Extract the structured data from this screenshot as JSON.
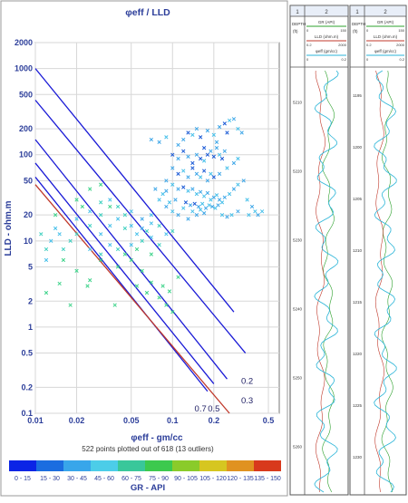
{
  "chart_data": [
    {
      "type": "scatter",
      "title": "φeff / LLD",
      "xlabel": "φeff - gm/cc",
      "ylabel": "LLD - ohm.m",
      "x_scale": "log",
      "y_scale": "log",
      "xlim": [
        0.01,
        0.6
      ],
      "ylim": [
        0.1,
        2000
      ],
      "grid": true,
      "x_ticks": [
        {
          "v": 0.01,
          "label": "0.01"
        },
        {
          "v": 0.02,
          "label": "0.02"
        },
        {
          "v": 0.05,
          "label": "0.05"
        },
        {
          "v": 0.1,
          "label": "0.1"
        },
        {
          "v": 0.2,
          "label": "0.2"
        },
        {
          "v": 0.5,
          "label": "0.5"
        }
      ],
      "y_ticks": [
        {
          "v": 0.1,
          "label": "0.1"
        },
        {
          "v": 0.2,
          "label": "0.2"
        },
        {
          "v": 0.5,
          "label": "0.5"
        },
        {
          "v": 1,
          "label": "1"
        },
        {
          "v": 2,
          "label": "2"
        },
        {
          "v": 5,
          "label": "5"
        },
        {
          "v": 10,
          "label": "10"
        },
        {
          "v": 20,
          "label": "20"
        },
        {
          "v": 50,
          "label": "50"
        },
        {
          "v": 100,
          "label": "100"
        },
        {
          "v": 200,
          "label": "200"
        },
        {
          "v": 500,
          "label": "500"
        },
        {
          "v": 1000,
          "label": "1000"
        },
        {
          "v": 2000,
          "label": "2000"
        }
      ],
      "iso_lines": [
        {
          "label": "0.2",
          "color": "#1a1ad6",
          "points": [
            [
              0.01,
              1000
            ],
            [
              0.28,
              1.5
            ]
          ]
        },
        {
          "label": "0.3",
          "color": "#1a1ad6",
          "points": [
            [
              0.01,
              430
            ],
            [
              0.34,
              0.5
            ]
          ]
        },
        {
          "label": "0.5",
          "color": "#1a1ad6",
          "points": [
            [
              0.01,
              150
            ],
            [
              0.25,
              0.25
            ]
          ]
        },
        {
          "label": "0.7",
          "color": "#1a1ad6",
          "points": [
            [
              0.01,
              80
            ],
            [
              0.2,
              0.22
            ]
          ]
        },
        {
          "label": "",
          "color": "#1a1ad6",
          "points": [
            [
              0.01,
              55
            ],
            [
              0.18,
              0.18
            ]
          ]
        },
        {
          "label": "",
          "color": "#c0392b",
          "points": [
            [
              0.01,
              45
            ],
            [
              0.26,
              0.1
            ]
          ]
        }
      ],
      "iso_label_positions": [
        [
          0.35,
          0.22
        ],
        [
          0.35,
          0.13
        ],
        [
          0.2,
          0.105
        ],
        [
          0.16,
          0.105
        ]
      ],
      "points": [
        [
          0.07,
          150,
          "#3fa7e8"
        ],
        [
          0.08,
          140,
          "#3fa7e8"
        ],
        [
          0.09,
          160,
          "#47c0ea"
        ],
        [
          0.11,
          130,
          "#3fa7e8"
        ],
        [
          0.12,
          150,
          "#3fa7e8"
        ],
        [
          0.13,
          180,
          "#1c5bd6"
        ],
        [
          0.14,
          170,
          "#47c0ea"
        ],
        [
          0.15,
          200,
          "#3fa7e8"
        ],
        [
          0.16,
          160,
          "#1c5bd6"
        ],
        [
          0.18,
          190,
          "#3fa7e8"
        ],
        [
          0.2,
          170,
          "#47c0ea"
        ],
        [
          0.22,
          210,
          "#3fa7e8"
        ],
        [
          0.24,
          230,
          "#1c5bd6"
        ],
        [
          0.26,
          250,
          "#47c0ea"
        ],
        [
          0.28,
          260,
          "#3fa7e8"
        ],
        [
          0.3,
          200,
          "#47c0ea"
        ],
        [
          0.32,
          180,
          "#3fa7e8"
        ],
        [
          0.25,
          180,
          "#1c5bd6"
        ],
        [
          0.21,
          140,
          "#3fa7e8"
        ],
        [
          0.17,
          120,
          "#1c5bd6"
        ],
        [
          0.1,
          100,
          "#1c5bd6"
        ],
        [
          0.11,
          90,
          "#3fa7e8"
        ],
        [
          0.12,
          110,
          "#1c5bd6"
        ],
        [
          0.13,
          95,
          "#3fa7e8"
        ],
        [
          0.14,
          80,
          "#1c5bd6"
        ],
        [
          0.15,
          100,
          "#3fa7e8"
        ],
        [
          0.16,
          90,
          "#1c5bd6"
        ],
        [
          0.17,
          85,
          "#47c0ea"
        ],
        [
          0.18,
          100,
          "#1c5bd6"
        ],
        [
          0.19,
          110,
          "#3fa7e8"
        ],
        [
          0.2,
          95,
          "#1c5bd6"
        ],
        [
          0.21,
          120,
          "#3fa7e8"
        ],
        [
          0.22,
          100,
          "#47c0ea"
        ],
        [
          0.23,
          90,
          "#1c5bd6"
        ],
        [
          0.24,
          110,
          "#3fa7e8"
        ],
        [
          0.1,
          70,
          "#3fa7e8"
        ],
        [
          0.11,
          60,
          "#1c5bd6"
        ],
        [
          0.12,
          65,
          "#47c0ea"
        ],
        [
          0.13,
          55,
          "#3fa7e8"
        ],
        [
          0.14,
          70,
          "#1c5bd6"
        ],
        [
          0.15,
          60,
          "#3fa7e8"
        ],
        [
          0.16,
          55,
          "#47c0ea"
        ],
        [
          0.17,
          65,
          "#1c5bd6"
        ],
        [
          0.18,
          50,
          "#3fa7e8"
        ],
        [
          0.19,
          60,
          "#47c0ea"
        ],
        [
          0.2,
          55,
          "#1c5bd6"
        ],
        [
          0.22,
          60,
          "#3fa7e8"
        ],
        [
          0.25,
          70,
          "#47c0ea"
        ],
        [
          0.28,
          80,
          "#3fa7e8"
        ],
        [
          0.3,
          90,
          "#47c0ea"
        ],
        [
          0.09,
          50,
          "#3fa7e8"
        ],
        [
          0.1,
          45,
          "#47c0ea"
        ],
        [
          0.11,
          40,
          "#3fa7e8"
        ],
        [
          0.12,
          42,
          "#1c5bd6"
        ],
        [
          0.13,
          38,
          "#47c0ea"
        ],
        [
          0.14,
          40,
          "#3fa7e8"
        ],
        [
          0.15,
          35,
          "#47c0ea"
        ],
        [
          0.16,
          37,
          "#3fa7e8"
        ],
        [
          0.17,
          33,
          "#47c0ea"
        ],
        [
          0.18,
          36,
          "#3fa7e8"
        ],
        [
          0.19,
          30,
          "#47c0ea"
        ],
        [
          0.2,
          32,
          "#3fa7e8"
        ],
        [
          0.21,
          34,
          "#47c0ea"
        ],
        [
          0.22,
          30,
          "#3fa7e8"
        ],
        [
          0.23,
          28,
          "#47c0ea"
        ],
        [
          0.24,
          32,
          "#3fa7e8"
        ],
        [
          0.26,
          35,
          "#47c0ea"
        ],
        [
          0.28,
          40,
          "#3fa7e8"
        ],
        [
          0.3,
          45,
          "#47c0ea"
        ],
        [
          0.33,
          50,
          "#3fa7e8"
        ],
        [
          0.35,
          30,
          "#47c0ea"
        ],
        [
          0.38,
          25,
          "#3fa7e8"
        ],
        [
          0.4,
          22,
          "#47c0ea"
        ],
        [
          0.42,
          20,
          "#3fa7e8"
        ],
        [
          0.45,
          22,
          "#47c0ea"
        ],
        [
          0.08,
          30,
          "#47c0ea"
        ],
        [
          0.09,
          25,
          "#3fa7e8"
        ],
        [
          0.1,
          22,
          "#47c0ea"
        ],
        [
          0.11,
          20,
          "#3fa7e8"
        ],
        [
          0.12,
          24,
          "#47c0ea"
        ],
        [
          0.13,
          18,
          "#3fa7e8"
        ],
        [
          0.14,
          22,
          "#47c0ea"
        ],
        [
          0.15,
          20,
          "#3fa7e8"
        ],
        [
          0.16,
          23,
          "#47c0ea"
        ],
        [
          0.17,
          21,
          "#3fa7e8"
        ],
        [
          0.07,
          20,
          "#47c0ea"
        ],
        [
          0.06,
          18,
          "#3fa7e8"
        ],
        [
          0.05,
          22,
          "#47c0ea"
        ],
        [
          0.045,
          20,
          "#40d0c0"
        ],
        [
          0.05,
          15,
          "#47c0ea"
        ],
        [
          0.06,
          14,
          "#3fa7e8"
        ],
        [
          0.07,
          16,
          "#47c0ea"
        ],
        [
          0.08,
          15,
          "#40d0c0"
        ],
        [
          0.09,
          12,
          "#47c0ea"
        ],
        [
          0.1,
          13,
          "#40d0c0"
        ],
        [
          0.04,
          25,
          "#40d0c0"
        ],
        [
          0.035,
          30,
          "#47c0ea"
        ],
        [
          0.03,
          28,
          "#40d0c0"
        ],
        [
          0.04,
          18,
          "#47c0ea"
        ],
        [
          0.045,
          14,
          "#40d0c0"
        ],
        [
          0.035,
          15,
          "#47c0ea"
        ],
        [
          0.03,
          20,
          "#40d0c0"
        ],
        [
          0.025,
          22,
          "#47c0ea"
        ],
        [
          0.025,
          15,
          "#40d0c0"
        ],
        [
          0.03,
          12,
          "#47c0ea"
        ],
        [
          0.02,
          12,
          "#40d0c0"
        ],
        [
          0.02,
          18,
          "#47c0ea"
        ],
        [
          0.018,
          10,
          "#40d0c0"
        ],
        [
          0.015,
          12,
          "#47c0ea"
        ],
        [
          0.016,
          8,
          "#40d0c0"
        ],
        [
          0.013,
          10,
          "#47c0ea"
        ],
        [
          0.012,
          8,
          "#40d0c0"
        ],
        [
          0.014,
          14,
          "#47c0ea"
        ],
        [
          0.011,
          12,
          "#40d0c0"
        ],
        [
          0.012,
          6,
          "#47c0ea"
        ],
        [
          0.025,
          8,
          "#47c0ea"
        ],
        [
          0.03,
          7,
          "#40d0c0"
        ],
        [
          0.035,
          9,
          "#47c0ea"
        ],
        [
          0.04,
          8,
          "#40d0c0"
        ],
        [
          0.05,
          9,
          "#47c0ea"
        ],
        [
          0.06,
          10,
          "#40d0c0"
        ],
        [
          0.07,
          11,
          "#47c0ea"
        ],
        [
          0.08,
          9,
          "#40d0c0"
        ],
        [
          0.055,
          12,
          "#47c0ea"
        ],
        [
          0.065,
          13,
          "#40d0c0"
        ],
        [
          0.075,
          40,
          "#3fa7e8"
        ],
        [
          0.085,
          35,
          "#47c0ea"
        ],
        [
          0.09,
          38,
          "#3fa7e8"
        ],
        [
          0.095,
          28,
          "#47c0ea"
        ],
        [
          0.105,
          30,
          "#3fa7e8"
        ],
        [
          0.125,
          28,
          "#1c5bd6"
        ],
        [
          0.135,
          26,
          "#3fa7e8"
        ],
        [
          0.145,
          27,
          "#1c5bd6"
        ],
        [
          0.155,
          25,
          "#3fa7e8"
        ],
        [
          0.165,
          27,
          "#47c0ea"
        ],
        [
          0.175,
          24,
          "#3fa7e8"
        ],
        [
          0.185,
          26,
          "#47c0ea"
        ],
        [
          0.195,
          25,
          "#3fa7e8"
        ],
        [
          0.205,
          24,
          "#47c0ea"
        ],
        [
          0.215,
          26,
          "#3fa7e8"
        ],
        [
          0.23,
          20,
          "#47c0ea"
        ],
        [
          0.25,
          19,
          "#3fa7e8"
        ],
        [
          0.27,
          20,
          "#47c0ea"
        ],
        [
          0.3,
          22,
          "#3fa7e8"
        ],
        [
          0.36,
          20,
          "#47c0ea"
        ],
        [
          0.025,
          40,
          "#3ed38a"
        ],
        [
          0.03,
          45,
          "#3ed38a"
        ],
        [
          0.035,
          25,
          "#3ed38a"
        ],
        [
          0.02,
          30,
          "#3ed38a"
        ],
        [
          0.022,
          25,
          "#3ed38a"
        ],
        [
          0.014,
          20,
          "#3ed38a"
        ],
        [
          0.016,
          6,
          "#3ed38a"
        ],
        [
          0.02,
          4.5,
          "#3ed38a"
        ],
        [
          0.025,
          3.5,
          "#3ed38a"
        ],
        [
          0.015,
          3.2,
          "#3ed38a"
        ],
        [
          0.012,
          2.5,
          "#3ed38a"
        ],
        [
          0.018,
          1.8,
          "#3ed38a"
        ],
        [
          0.024,
          3,
          "#3ed38a"
        ],
        [
          0.038,
          1.8,
          "#3ed38a"
        ],
        [
          0.055,
          3,
          "#3ed38a"
        ],
        [
          0.065,
          2.5,
          "#3ed38a"
        ],
        [
          0.07,
          3.3,
          "#3ed38a"
        ],
        [
          0.08,
          2.2,
          "#3ed38a"
        ],
        [
          0.085,
          3,
          "#3ed38a"
        ],
        [
          0.09,
          1.8,
          "#3ed38a"
        ],
        [
          0.095,
          2.6,
          "#3ed38a"
        ],
        [
          0.1,
          1.5,
          "#3ed38a"
        ],
        [
          0.11,
          3.8,
          "#3ed38a"
        ],
        [
          0.06,
          4.5,
          "#3ed38a"
        ],
        [
          0.04,
          5,
          "#3ed38a"
        ],
        [
          0.03,
          6,
          "#3ed38a"
        ],
        [
          0.045,
          7,
          "#3ed38a"
        ],
        [
          0.05,
          6,
          "#3ed38a"
        ],
        [
          0.055,
          8,
          "#3ed38a"
        ],
        [
          0.07,
          7,
          "#3ed38a"
        ]
      ],
      "points_label": "522 points plotted out of 618 (13 outliers)",
      "colorbar": {
        "label": "GR - API",
        "bins": [
          {
            "range": "0 - 15",
            "color": "#0b24e6"
          },
          {
            "range": "15 - 30",
            "color": "#1b6de0"
          },
          {
            "range": "30 - 45",
            "color": "#38a6ea"
          },
          {
            "range": "45 - 60",
            "color": "#4ccde8"
          },
          {
            "range": "60 - 75",
            "color": "#39c79a"
          },
          {
            "range": "75 - 90",
            "color": "#3cc94e"
          },
          {
            "range": "90 - 105",
            "color": "#8acb2a"
          },
          {
            "range": "105 - 120",
            "color": "#d6c620"
          },
          {
            "range": "120 - 135",
            "color": "#e09220"
          },
          {
            "range": "135 - 150",
            "color": "#d8391c"
          }
        ]
      }
    }
  ],
  "log_panels": [
    {
      "track1_header": "1",
      "track2_header": "2",
      "depth_label": "DEPTH",
      "depth_unit": "(ft)",
      "curves": [
        {
          "name": "GR (API)",
          "min": "0",
          "max": "150",
          "color": "#2ca02c"
        },
        {
          "name": "LLD (ohm.m)",
          "min": "0.2",
          "max": "2000",
          "color": "#c0392b"
        },
        {
          "name": "φeff (gm/cc)",
          "min": "0",
          "max": "0.2",
          "color": "#2bb5d8"
        }
      ],
      "depths": [
        "5210",
        "5220",
        "5230",
        "5240",
        "5250",
        "5260"
      ]
    },
    {
      "track1_header": "1",
      "track2_header": "2",
      "depth_label": "DEPTH",
      "depth_unit": "(ft)",
      "curves": [
        {
          "name": "GR (API)",
          "min": "0",
          "max": "150",
          "color": "#2ca02c"
        },
        {
          "name": "LLD (ohm.m)",
          "min": "0.2",
          "max": "2000",
          "color": "#c0392b"
        },
        {
          "name": "φeff (gm/cc)",
          "min": "0",
          "max": "0.2",
          "color": "#2bb5d8"
        }
      ],
      "depths": [
        "1195",
        "1200",
        "1205",
        "1210",
        "1215",
        "1220",
        "1225",
        "1230"
      ]
    }
  ]
}
